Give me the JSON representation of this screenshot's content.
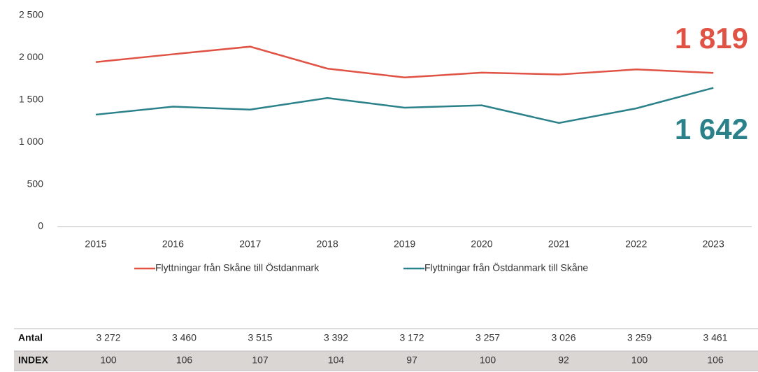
{
  "chart_data": {
    "type": "line",
    "x": [
      "2015",
      "2016",
      "2017",
      "2018",
      "2019",
      "2020",
      "2021",
      "2022",
      "2023"
    ],
    "ylim": [
      0,
      2500
    ],
    "yticks": [
      0,
      500,
      {
        "value": 1000,
        "label": "1 000"
      },
      {
        "value": 1500,
        "label": "1 500"
      },
      {
        "value": 2000,
        "label": "2 000"
      },
      {
        "value": 2500,
        "label": "2 500"
      }
    ],
    "legend": "bottom",
    "series": [
      {
        "name": "Flyttningar från Skåne till Östdanmark",
        "color": "#e05244",
        "values": [
          1947,
          2040,
          2130,
          1870,
          1765,
          1822,
          1800,
          1860,
          1819
        ],
        "value_labels": [
          null,
          null,
          null,
          null,
          null,
          null,
          null,
          null,
          "1 819"
        ]
      },
      {
        "name": "Flyttningar från Östdanmark till Skåne",
        "color": "#2a8189",
        "values": [
          1325,
          1420,
          1385,
          1522,
          1407,
          1435,
          1226,
          1399,
          1642
        ],
        "value_labels": [
          null,
          null,
          null,
          null,
          null,
          null,
          null,
          null,
          "1 642"
        ]
      }
    ]
  },
  "table": {
    "rows": [
      {
        "label": "Antal",
        "values": [
          "3 272",
          "3 460",
          "3 515",
          "3 392",
          "3 172",
          "3 257",
          "3 026",
          "3 259",
          "3 461"
        ]
      },
      {
        "label": "INDEX",
        "values": [
          "100",
          "106",
          "107",
          "104",
          "97",
          "100",
          "92",
          "100",
          "106"
        ]
      }
    ]
  }
}
